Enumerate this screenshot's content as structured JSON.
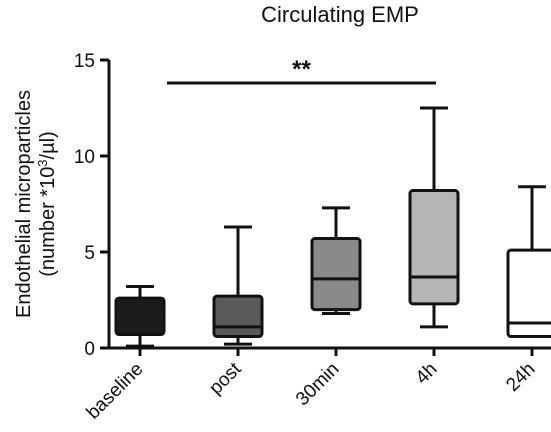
{
  "chart_data": {
    "type": "box",
    "title": "Circulating EMP",
    "ylabel_line1": "Endothelial microparticles",
    "ylabel_line2_pre": "(number *10",
    "ylabel_line2_sup": "3",
    "ylabel_line2_post": "/µl)",
    "ylim": [
      0,
      15
    ],
    "yticks": [
      0,
      5,
      10,
      15
    ],
    "categories": [
      "baseline",
      "post",
      "30min",
      "4h",
      "24h"
    ],
    "boxes": [
      {
        "category": "baseline",
        "whisker_low": 0.1,
        "q1": 0.7,
        "median": 1.6,
        "q3": 2.6,
        "whisker_high": 3.2,
        "fill": "#1c1c1c"
      },
      {
        "category": "post",
        "whisker_low": 0.2,
        "q1": 0.6,
        "median": 1.1,
        "q3": 2.7,
        "whisker_high": 6.3,
        "fill": "#5a5a5a"
      },
      {
        "category": "30min",
        "whisker_low": 1.8,
        "q1": 2.0,
        "median": 3.6,
        "q3": 5.7,
        "whisker_high": 7.3,
        "fill": "#8a8a8a"
      },
      {
        "category": "4h",
        "whisker_low": 1.1,
        "q1": 2.3,
        "median": 3.7,
        "q3": 8.2,
        "whisker_high": 12.5,
        "fill": "#b5b5b5"
      },
      {
        "category": "24h",
        "whisker_low": 0.6,
        "q1": 0.6,
        "median": 1.3,
        "q3": 5.1,
        "whisker_high": 8.4,
        "fill": "#ffffff"
      }
    ],
    "significance": {
      "label": "**",
      "from": "baseline",
      "to": "4h",
      "level": 13.8
    },
    "grid": false,
    "legend": "none"
  }
}
